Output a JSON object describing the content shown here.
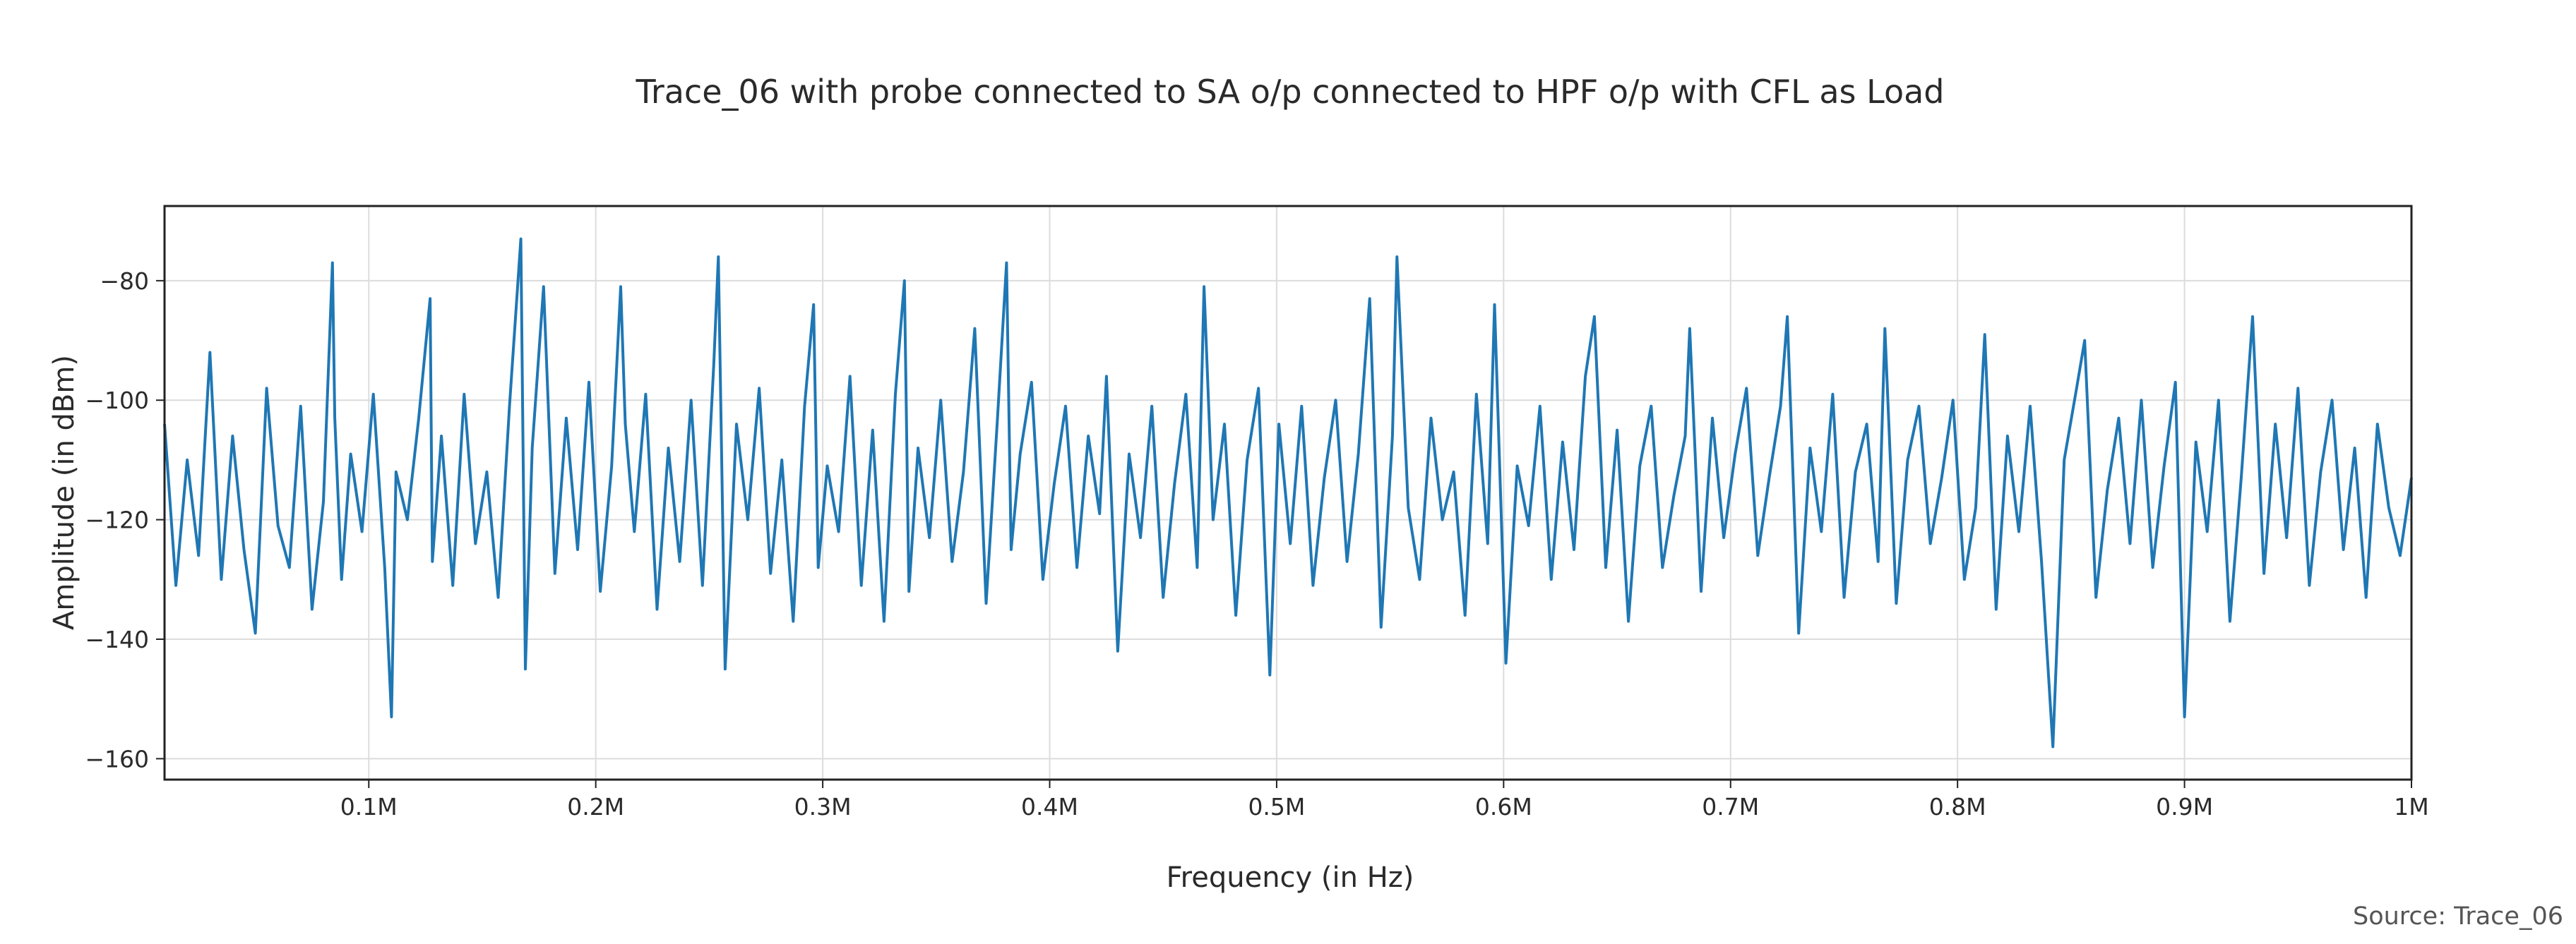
{
  "chart_data": {
    "type": "line",
    "title": "Trace_06 with probe connected to SA o/p connected to HPF o/p with CFL as Load",
    "xlabel": "Frequency (in Hz)",
    "ylabel": "Amplitude (in dBm)",
    "source": "Source: Trace_06",
    "xlim": [
      10000,
      1000000
    ],
    "ylim": [
      -163.5,
      -67.5
    ],
    "x_ticks": [
      {
        "value": 100000,
        "label": "0.1M"
      },
      {
        "value": 200000,
        "label": "0.2M"
      },
      {
        "value": 300000,
        "label": "0.3M"
      },
      {
        "value": 400000,
        "label": "0.4M"
      },
      {
        "value": 500000,
        "label": "0.5M"
      },
      {
        "value": 600000,
        "label": "0.6M"
      },
      {
        "value": 700000,
        "label": "0.7M"
      },
      {
        "value": 800000,
        "label": "0.8M"
      },
      {
        "value": 900000,
        "label": "0.9M"
      },
      {
        "value": 1000000,
        "label": "1M"
      }
    ],
    "y_ticks": [
      {
        "value": -80,
        "label": "−80"
      },
      {
        "value": -100,
        "label": "−100"
      },
      {
        "value": -120,
        "label": "−120"
      },
      {
        "value": -140,
        "label": "−140"
      },
      {
        "value": -160,
        "label": "−160"
      }
    ],
    "grid": true,
    "series": [
      {
        "color": "#1f77b4",
        "x": [
          10000,
          15000,
          20000,
          25000,
          30000,
          35000,
          40000,
          45000,
          50000,
          55000,
          60000,
          65000,
          70000,
          75000,
          80000,
          84000,
          85000,
          88000,
          92000,
          97000,
          102000,
          107000,
          110000,
          112000,
          117000,
          122000,
          127000,
          128000,
          132000,
          137000,
          142000,
          147000,
          152000,
          157000,
          162000,
          167000,
          169000,
          172000,
          177000,
          182000,
          187000,
          192000,
          197000,
          202000,
          207000,
          211000,
          213000,
          217000,
          222000,
          227000,
          232000,
          237000,
          242000,
          247000,
          252000,
          254000,
          257000,
          262000,
          267000,
          272000,
          277000,
          282000,
          287000,
          292000,
          296000,
          298000,
          302000,
          307000,
          312000,
          317000,
          322000,
          327000,
          332000,
          336000,
          338000,
          342000,
          347000,
          352000,
          357000,
          362000,
          367000,
          372000,
          377000,
          381000,
          383000,
          387000,
          392000,
          397000,
          402000,
          407000,
          412000,
          417000,
          422000,
          425000,
          430000,
          435000,
          440000,
          445000,
          450000,
          455000,
          460000,
          465000,
          468000,
          472000,
          477000,
          482000,
          487000,
          492000,
          497000,
          501000,
          506000,
          511000,
          516000,
          521000,
          526000,
          531000,
          536000,
          541000,
          546000,
          551000,
          553000,
          558000,
          563000,
          568000,
          573000,
          578000,
          583000,
          588000,
          593000,
          596000,
          601000,
          606000,
          611000,
          616000,
          621000,
          626000,
          631000,
          636000,
          640000,
          645000,
          650000,
          655000,
          660000,
          665000,
          670000,
          675000,
          680000,
          682000,
          687000,
          692000,
          697000,
          702000,
          707000,
          712000,
          717000,
          722000,
          725000,
          730000,
          735000,
          740000,
          745000,
          750000,
          755000,
          760000,
          765000,
          768000,
          773000,
          778000,
          783000,
          788000,
          793000,
          798000,
          803000,
          808000,
          812000,
          817000,
          822000,
          827000,
          832000,
          837000,
          842000,
          847000,
          852000,
          856000,
          861000,
          866000,
          871000,
          876000,
          881000,
          886000,
          891000,
          896000,
          900000,
          905000,
          910000,
          915000,
          920000,
          925000,
          930000,
          935000,
          940000,
          945000,
          950000,
          955000,
          960000,
          965000,
          970000,
          975000,
          980000,
          985000,
          990000,
          995000,
          1000000
        ],
        "y": [
          -104,
          -131,
          -110,
          -126,
          -92,
          -130,
          -106,
          -125,
          -139,
          -98,
          -121,
          -128,
          -101,
          -135,
          -117,
          -77,
          -103,
          -130,
          -109,
          -122,
          -99,
          -128,
          -153,
          -112,
          -120,
          -103,
          -83,
          -127,
          -106,
          -131,
          -99,
          -124,
          -112,
          -133,
          -101,
          -73,
          -145,
          -108,
          -81,
          -129,
          -103,
          -125,
          -97,
          -132,
          -111,
          -81,
          -104,
          -122,
          -99,
          -135,
          -108,
          -127,
          -100,
          -131,
          -94,
          -76,
          -145,
          -104,
          -120,
          -98,
          -129,
          -110,
          -137,
          -101,
          -84,
          -128,
          -111,
          -122,
          -96,
          -131,
          -105,
          -137,
          -99,
          -80,
          -132,
          -108,
          -123,
          -100,
          -127,
          -112,
          -88,
          -134,
          -103,
          -77,
          -125,
          -109,
          -97,
          -130,
          -114,
          -101,
          -128,
          -106,
          -119,
          -96,
          -142,
          -109,
          -123,
          -101,
          -133,
          -114,
          -99,
          -128,
          -81,
          -120,
          -104,
          -136,
          -110,
          -98,
          -146,
          -104,
          -124,
          -101,
          -131,
          -113,
          -100,
          -127,
          -109,
          -83,
          -138,
          -106,
          -76,
          -118,
          -130,
          -103,
          -120,
          -112,
          -136,
          -99,
          -124,
          -84,
          -144,
          -111,
          -121,
          -101,
          -130,
          -107,
          -125,
          -96,
          -86,
          -128,
          -105,
          -137,
          -111,
          -101,
          -128,
          -116,
          -106,
          -88,
          -132,
          -103,
          -123,
          -109,
          -98,
          -126,
          -113,
          -101,
          -86,
          -139,
          -108,
          -122,
          -99,
          -133,
          -112,
          -104,
          -127,
          -88,
          -134,
          -110,
          -101,
          -124,
          -113,
          -100,
          -130,
          -118,
          -89,
          -135,
          -106,
          -122,
          -101,
          -127,
          -158,
          -110,
          -99,
          -90,
          -133,
          -115,
          -103,
          -124,
          -100,
          -128,
          -111,
          -97,
          -153,
          -107,
          -122,
          -100,
          -137,
          -113,
          -86,
          -129,
          -104,
          -123,
          -98,
          -131,
          -112,
          -100,
          -125,
          -108,
          -133,
          -104,
          -118,
          -126,
          -113
        ]
      }
    ]
  }
}
